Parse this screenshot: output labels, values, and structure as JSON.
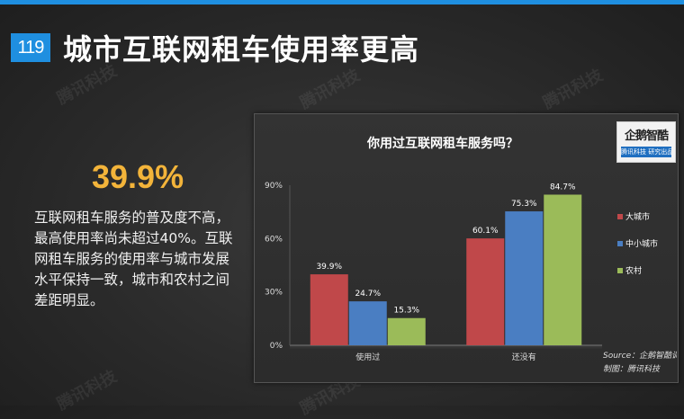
{
  "slide": {
    "number": "119",
    "title": "城市互联网租车使用率更高"
  },
  "summary": {
    "stat": "39.9%",
    "text": "互联网租车服务的普及度不高，最高使用率尚未超过40%。互联网租车服务的使用率与城市发展水平保持一致，城市和农村之间差距明显。"
  },
  "logo": {
    "name": "企鹅智酷",
    "sub": "腾讯科技 研究出品"
  },
  "watermark_text": "腾讯科技",
  "colors": {
    "accent_blue": "#1f8fe0",
    "stat_orange": "#f3b43a"
  },
  "chart_data": {
    "type": "bar",
    "title": "你用过互联网租车服务吗？",
    "categories": [
      "使用过",
      "还没有"
    ],
    "series": [
      {
        "name": "大城市",
        "values": [
          39.9,
          60.1
        ],
        "labels": [
          "39.9%",
          "60.1%"
        ],
        "color": "#c0484a"
      },
      {
        "name": "中小城市",
        "values": [
          24.7,
          75.3
        ],
        "labels": [
          "24.7%",
          "75.3%"
        ],
        "color": "#4a7ec2"
      },
      {
        "name": "农村",
        "values": [
          15.3,
          84.7
        ],
        "labels": [
          "15.3%",
          "84.7%"
        ],
        "color": "#9bbb59"
      }
    ],
    "ylim": [
      0,
      90
    ],
    "yticks": [
      0,
      30,
      60,
      90
    ],
    "ytick_labels": [
      "0%",
      "30%",
      "60%",
      "90%"
    ],
    "grid": false,
    "legend_position": "right",
    "source_lines": [
      "Source：企鹅智酷调查",
      "制图：腾讯科技"
    ]
  }
}
